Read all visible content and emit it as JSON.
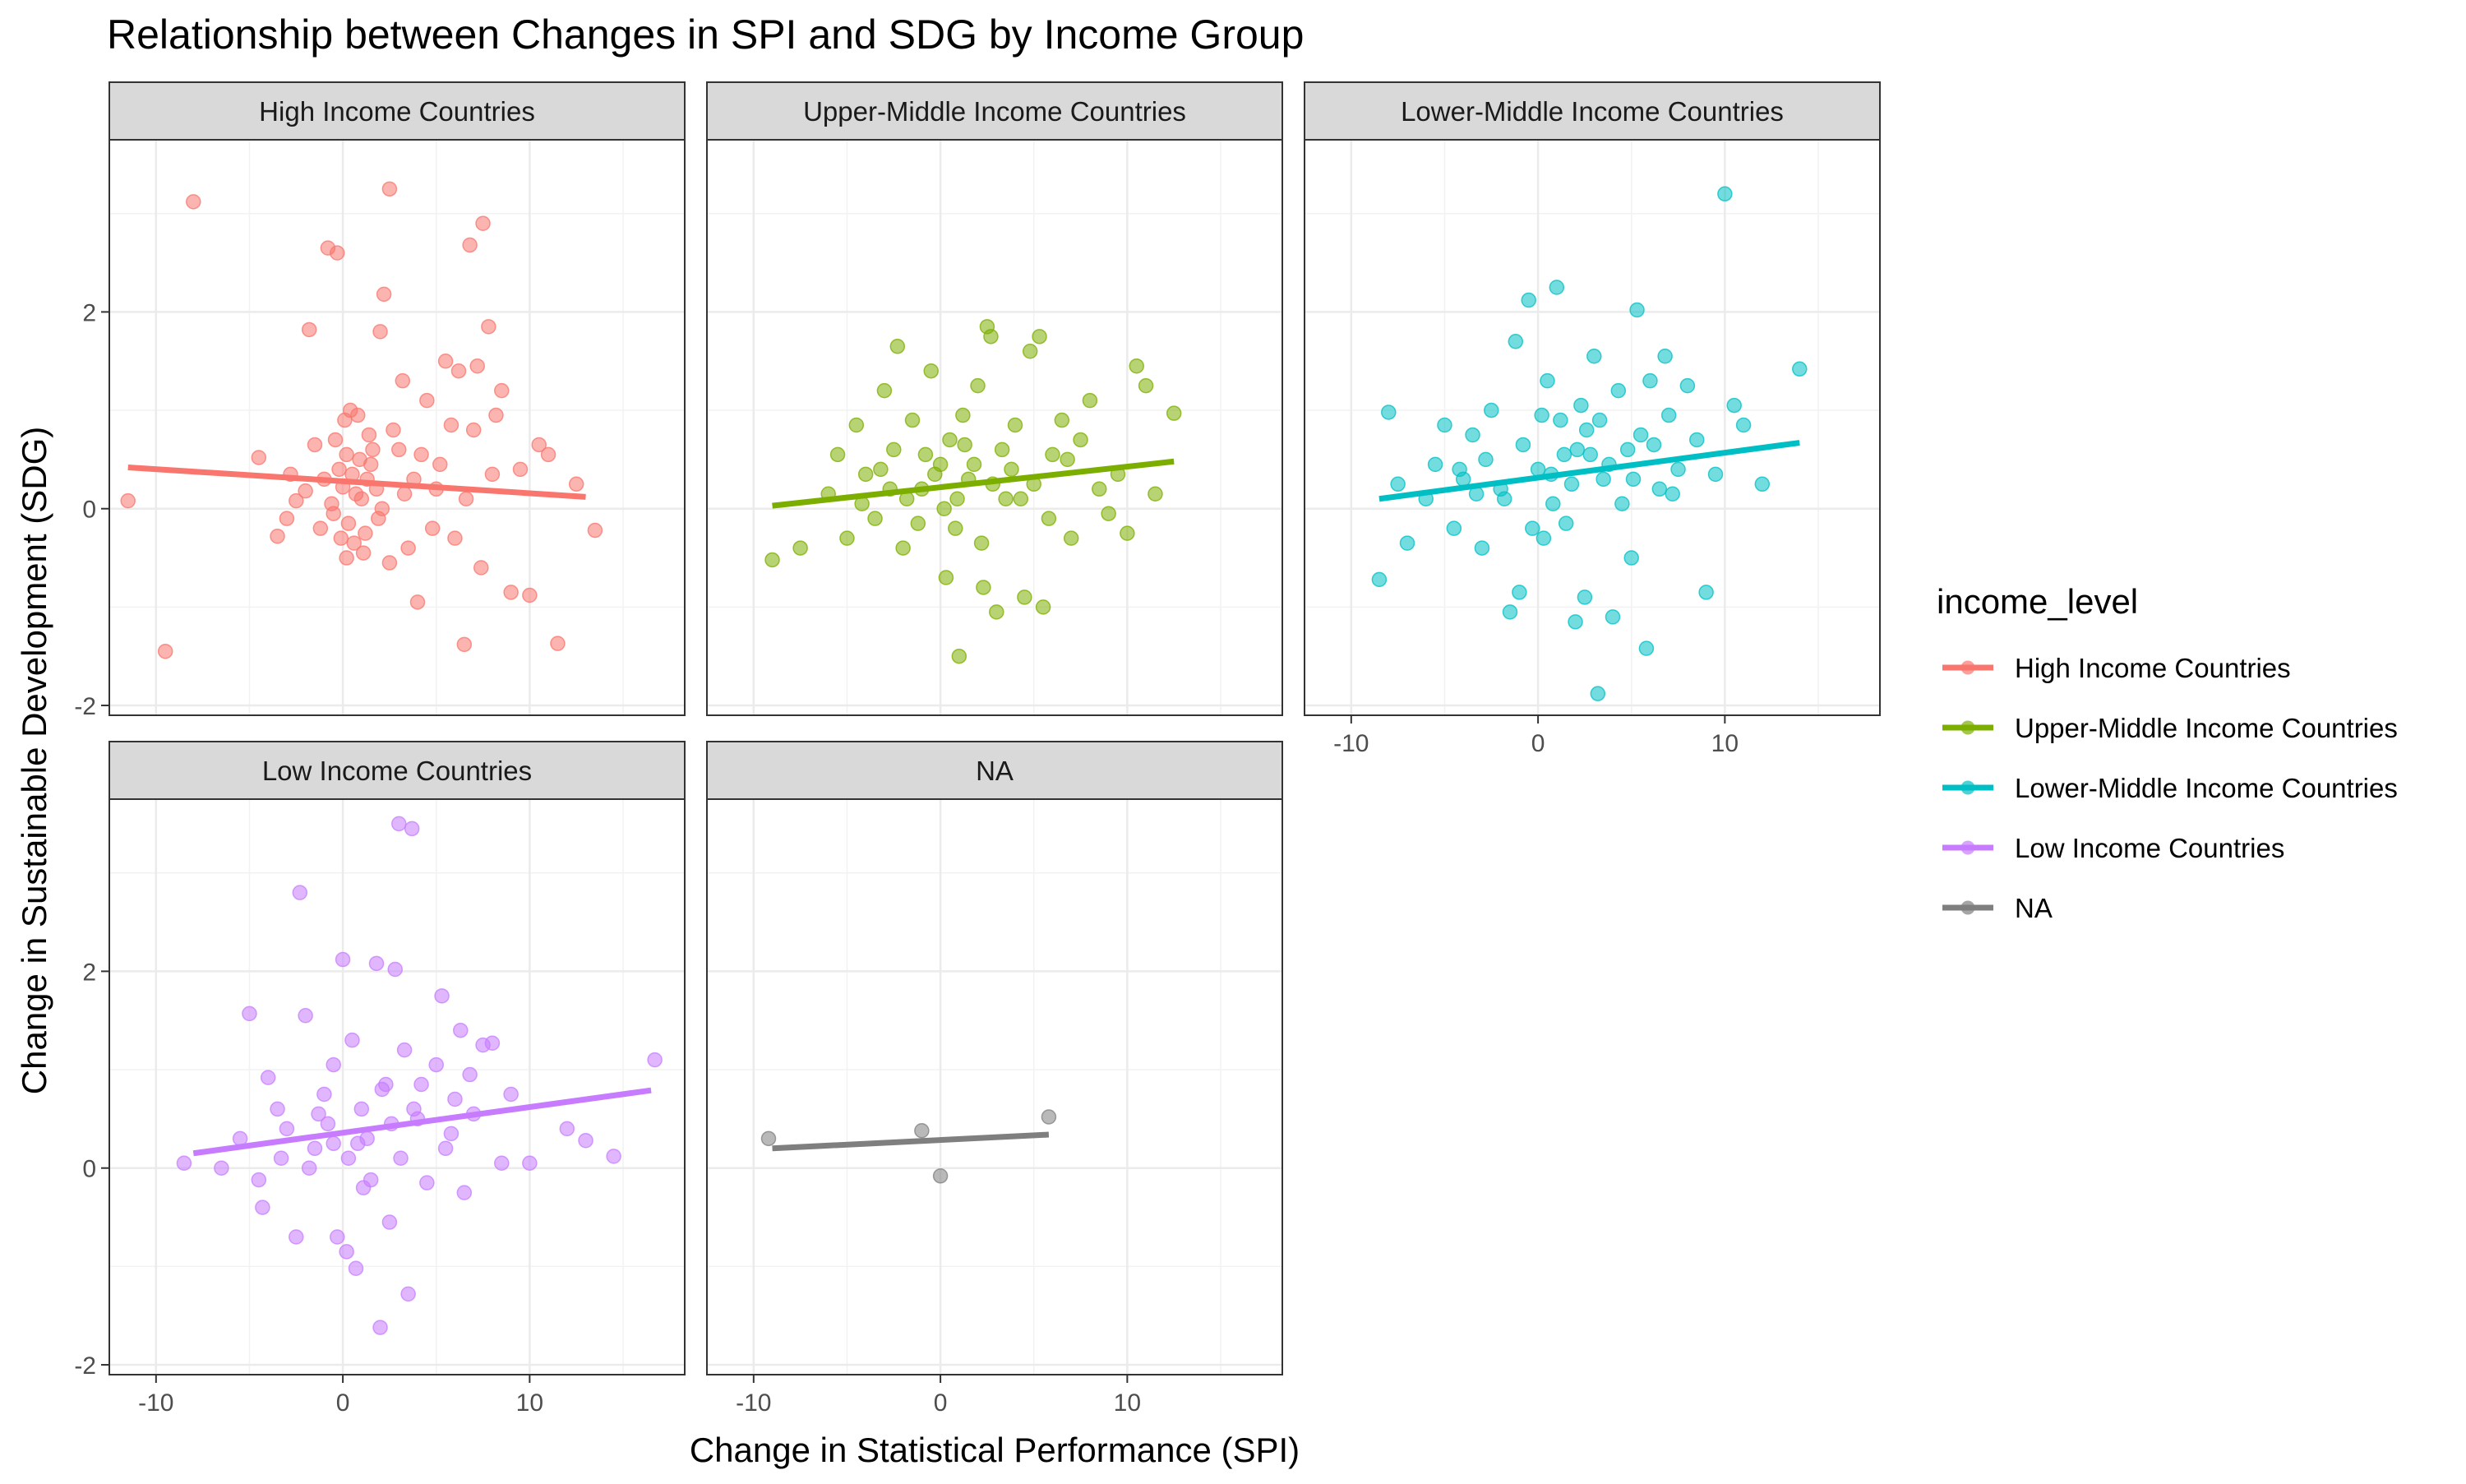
{
  "chart_data": {
    "type": "scatter",
    "title": "Relationship between Changes in SPI and SDG by Income Group",
    "xlabel": "Change in Statistical Performance (SPI)",
    "ylabel": "Change in Sustainable Development (SDG)",
    "xlim": [
      -12.5,
      18.3
    ],
    "ylim": [
      -2.1,
      3.75
    ],
    "x_ticks": [
      -10,
      0,
      10
    ],
    "y_ticks": [
      -2,
      0,
      2
    ],
    "grid": true,
    "legend": {
      "title": "income_level",
      "position": "right",
      "entries": [
        {
          "label": "High Income Countries",
          "color": "#F8766D"
        },
        {
          "label": "Upper-Middle Income Countries",
          "color": "#7CAE00"
        },
        {
          "label": "Lower-Middle Income Countries",
          "color": "#00BFC4"
        },
        {
          "label": "Low Income Countries",
          "color": "#C77CFF"
        },
        {
          "label": "NA",
          "color": "#7F7F7F"
        }
      ]
    },
    "panels": [
      {
        "name": "High Income Countries",
        "color": "#F8766D",
        "trend": {
          "x": [
            -11.5,
            13.0
          ],
          "y": [
            0.42,
            0.12
          ]
        },
        "points": [
          [
            -11.5,
            0.08
          ],
          [
            -9.5,
            -1.45
          ],
          [
            -8.0,
            3.12
          ],
          [
            -4.5,
            0.52
          ],
          [
            -3.5,
            -0.28
          ],
          [
            -2.5,
            0.08
          ],
          [
            -2.0,
            0.18
          ],
          [
            -1.8,
            1.82
          ],
          [
            -1.5,
            0.65
          ],
          [
            -1.0,
            0.3
          ],
          [
            -0.8,
            2.65
          ],
          [
            -0.6,
            0.05
          ],
          [
            -0.5,
            -0.05
          ],
          [
            -0.3,
            2.6
          ],
          [
            -0.2,
            0.4
          ],
          [
            0.0,
            0.22
          ],
          [
            0.2,
            0.55
          ],
          [
            0.3,
            -0.15
          ],
          [
            0.5,
            0.35
          ],
          [
            0.6,
            -0.35
          ],
          [
            0.8,
            0.95
          ],
          [
            1.0,
            0.1
          ],
          [
            1.2,
            -0.25
          ],
          [
            1.4,
            0.75
          ],
          [
            1.5,
            0.45
          ],
          [
            1.8,
            0.2
          ],
          [
            2.0,
            1.8
          ],
          [
            2.2,
            2.18
          ],
          [
            2.5,
            3.25
          ],
          [
            2.5,
            -0.55
          ],
          [
            3.0,
            0.6
          ],
          [
            3.2,
            1.3
          ],
          [
            3.5,
            -0.4
          ],
          [
            3.8,
            0.3
          ],
          [
            4.0,
            -0.95
          ],
          [
            4.5,
            1.1
          ],
          [
            5.0,
            0.2
          ],
          [
            5.5,
            1.5
          ],
          [
            6.0,
            -0.3
          ],
          [
            6.2,
            1.4
          ],
          [
            6.5,
            -1.38
          ],
          [
            6.8,
            2.68
          ],
          [
            7.0,
            0.8
          ],
          [
            7.2,
            1.45
          ],
          [
            7.5,
            2.9
          ],
          [
            7.8,
            1.85
          ],
          [
            8.0,
            0.35
          ],
          [
            8.5,
            1.2
          ],
          [
            9.0,
            -0.85
          ],
          [
            9.5,
            0.4
          ],
          [
            10.0,
            -0.88
          ],
          [
            10.5,
            0.65
          ],
          [
            11.0,
            0.55
          ],
          [
            11.5,
            -1.37
          ],
          [
            12.5,
            0.25
          ],
          [
            13.5,
            -0.22
          ],
          [
            -3.0,
            -0.1
          ],
          [
            -2.8,
            0.35
          ],
          [
            -1.2,
            -0.2
          ],
          [
            -0.4,
            0.7
          ],
          [
            0.1,
            0.9
          ],
          [
            0.4,
            1.0
          ],
          [
            0.9,
            0.5
          ],
          [
            1.1,
            -0.45
          ],
          [
            1.6,
            0.6
          ],
          [
            2.1,
            0.0
          ],
          [
            2.7,
            0.8
          ],
          [
            3.3,
            0.15
          ],
          [
            4.2,
            0.55
          ],
          [
            4.8,
            -0.2
          ],
          [
            5.2,
            0.45
          ],
          [
            5.8,
            0.85
          ],
          [
            6.6,
            0.1
          ],
          [
            7.4,
            -0.6
          ],
          [
            8.2,
            0.95
          ],
          [
            -0.1,
            -0.3
          ],
          [
            0.7,
            0.15
          ],
          [
            1.3,
            0.3
          ],
          [
            0.2,
            -0.5
          ],
          [
            1.9,
            -0.1
          ]
        ]
      },
      {
        "name": "Upper-Middle Income Countries",
        "color": "#7CAE00",
        "trend": {
          "x": [
            -9.0,
            12.5
          ],
          "y": [
            0.03,
            0.48
          ]
        },
        "points": [
          [
            -9.0,
            -0.52
          ],
          [
            -7.5,
            -0.4
          ],
          [
            -6.0,
            0.15
          ],
          [
            -5.5,
            0.55
          ],
          [
            -5.0,
            -0.3
          ],
          [
            -4.5,
            0.85
          ],
          [
            -4.0,
            0.35
          ],
          [
            -3.5,
            -0.1
          ],
          [
            -3.0,
            1.2
          ],
          [
            -2.5,
            0.6
          ],
          [
            -2.3,
            1.65
          ],
          [
            -2.0,
            -0.4
          ],
          [
            -1.5,
            0.9
          ],
          [
            -1.0,
            0.2
          ],
          [
            -0.5,
            1.4
          ],
          [
            0.0,
            0.45
          ],
          [
            0.3,
            -0.7
          ],
          [
            0.5,
            0.7
          ],
          [
            0.8,
            -0.2
          ],
          [
            1.0,
            -1.5
          ],
          [
            1.2,
            0.95
          ],
          [
            1.5,
            0.3
          ],
          [
            2.0,
            1.25
          ],
          [
            2.3,
            -0.8
          ],
          [
            2.5,
            1.85
          ],
          [
            2.7,
            1.75
          ],
          [
            3.0,
            -1.05
          ],
          [
            3.3,
            0.6
          ],
          [
            3.5,
            0.1
          ],
          [
            4.0,
            0.85
          ],
          [
            4.5,
            -0.9
          ],
          [
            4.8,
            1.6
          ],
          [
            5.0,
            0.25
          ],
          [
            5.3,
            1.75
          ],
          [
            5.5,
            -1.0
          ],
          [
            6.0,
            0.55
          ],
          [
            6.5,
            0.9
          ],
          [
            7.0,
            -0.3
          ],
          [
            7.5,
            0.7
          ],
          [
            8.0,
            1.1
          ],
          [
            8.5,
            0.2
          ],
          [
            9.0,
            -0.05
          ],
          [
            9.5,
            0.35
          ],
          [
            10.0,
            -0.25
          ],
          [
            10.5,
            1.45
          ],
          [
            11.0,
            1.25
          ],
          [
            11.5,
            0.15
          ],
          [
            12.5,
            0.97
          ],
          [
            -1.8,
            0.1
          ],
          [
            -0.8,
            0.55
          ],
          [
            0.2,
            0.0
          ],
          [
            1.8,
            0.45
          ],
          [
            2.8,
            0.25
          ],
          [
            3.8,
            0.4
          ],
          [
            -3.2,
            0.4
          ],
          [
            -1.2,
            -0.15
          ],
          [
            1.3,
            0.65
          ],
          [
            -0.3,
            0.35
          ],
          [
            0.9,
            0.1
          ],
          [
            2.2,
            -0.35
          ],
          [
            4.3,
            0.1
          ],
          [
            6.8,
            0.5
          ],
          [
            -2.7,
            0.2
          ],
          [
            -4.2,
            0.05
          ],
          [
            5.8,
            -0.1
          ]
        ]
      },
      {
        "name": "Lower-Middle Income Countries",
        "color": "#00BFC4",
        "trend": {
          "x": [
            -8.5,
            14.0
          ],
          "y": [
            0.1,
            0.67
          ]
        },
        "points": [
          [
            -8.5,
            -0.72
          ],
          [
            -8.0,
            0.98
          ],
          [
            -7.5,
            0.25
          ],
          [
            -7.0,
            -0.35
          ],
          [
            -6.0,
            0.1
          ],
          [
            -5.5,
            0.45
          ],
          [
            -5.0,
            0.85
          ],
          [
            -4.5,
            -0.2
          ],
          [
            -4.0,
            0.3
          ],
          [
            -3.5,
            0.75
          ],
          [
            -3.0,
            -0.4
          ],
          [
            -2.5,
            1.0
          ],
          [
            -2.0,
            0.2
          ],
          [
            -1.5,
            -1.05
          ],
          [
            -1.2,
            1.7
          ],
          [
            -1.0,
            -0.85
          ],
          [
            -0.5,
            2.12
          ],
          [
            0.0,
            0.4
          ],
          [
            0.3,
            -0.3
          ],
          [
            0.5,
            1.3
          ],
          [
            0.8,
            0.05
          ],
          [
            1.0,
            2.25
          ],
          [
            1.2,
            0.9
          ],
          [
            1.5,
            -0.15
          ],
          [
            2.0,
            -1.15
          ],
          [
            2.3,
            1.05
          ],
          [
            2.5,
            -0.9
          ],
          [
            2.8,
            0.55
          ],
          [
            3.0,
            1.55
          ],
          [
            3.2,
            -1.88
          ],
          [
            3.5,
            0.3
          ],
          [
            4.0,
            -1.1
          ],
          [
            4.3,
            1.2
          ],
          [
            4.8,
            0.6
          ],
          [
            5.0,
            -0.5
          ],
          [
            5.3,
            2.02
          ],
          [
            5.5,
            0.75
          ],
          [
            5.8,
            -1.42
          ],
          [
            6.0,
            1.3
          ],
          [
            6.5,
            0.2
          ],
          [
            6.8,
            1.55
          ],
          [
            7.0,
            0.95
          ],
          [
            7.5,
            0.4
          ],
          [
            8.0,
            1.25
          ],
          [
            8.5,
            0.7
          ],
          [
            9.0,
            -0.85
          ],
          [
            9.5,
            0.35
          ],
          [
            10.0,
            3.2
          ],
          [
            10.5,
            1.05
          ],
          [
            11.0,
            0.85
          ],
          [
            12.0,
            0.25
          ],
          [
            14.0,
            1.42
          ],
          [
            -2.8,
            0.5
          ],
          [
            -1.8,
            0.1
          ],
          [
            -0.8,
            0.65
          ],
          [
            0.2,
            0.95
          ],
          [
            1.8,
            0.25
          ],
          [
            2.6,
            0.8
          ],
          [
            3.8,
            0.45
          ],
          [
            4.5,
            0.05
          ],
          [
            6.2,
            0.65
          ],
          [
            -3.3,
            0.15
          ],
          [
            -0.3,
            -0.2
          ],
          [
            1.4,
            0.55
          ],
          [
            0.7,
            0.35
          ],
          [
            2.1,
            0.6
          ],
          [
            3.3,
            0.9
          ],
          [
            -4.2,
            0.4
          ],
          [
            5.1,
            0.3
          ],
          [
            7.2,
            0.15
          ]
        ]
      },
      {
        "name": "Low Income Countries",
        "color": "#C77CFF",
        "trend": {
          "x": [
            -8.0,
            16.5
          ],
          "y": [
            0.15,
            0.79
          ]
        },
        "points": [
          [
            -8.5,
            0.05
          ],
          [
            -6.5,
            0.0
          ],
          [
            -5.5,
            0.3
          ],
          [
            -5.0,
            1.57
          ],
          [
            -4.5,
            -0.12
          ],
          [
            -4.0,
            0.92
          ],
          [
            -3.5,
            0.6
          ],
          [
            -3.0,
            0.4
          ],
          [
            -2.5,
            -0.7
          ],
          [
            -2.3,
            2.8
          ],
          [
            -2.0,
            1.55
          ],
          [
            -1.5,
            0.2
          ],
          [
            -1.0,
            0.75
          ],
          [
            -0.5,
            1.05
          ],
          [
            -0.3,
            -0.7
          ],
          [
            0.0,
            2.12
          ],
          [
            0.2,
            -0.85
          ],
          [
            0.5,
            1.3
          ],
          [
            0.7,
            -1.02
          ],
          [
            1.0,
            0.6
          ],
          [
            1.5,
            -0.12
          ],
          [
            1.8,
            2.08
          ],
          [
            2.0,
            -1.62
          ],
          [
            2.3,
            0.85
          ],
          [
            2.5,
            -0.55
          ],
          [
            2.8,
            2.02
          ],
          [
            3.0,
            3.5
          ],
          [
            3.3,
            1.2
          ],
          [
            3.5,
            -1.28
          ],
          [
            3.7,
            3.45
          ],
          [
            4.0,
            0.5
          ],
          [
            4.5,
            -0.15
          ],
          [
            5.0,
            1.05
          ],
          [
            5.3,
            1.75
          ],
          [
            5.5,
            0.2
          ],
          [
            6.0,
            0.7
          ],
          [
            6.3,
            1.4
          ],
          [
            6.5,
            -0.25
          ],
          [
            7.0,
            0.55
          ],
          [
            7.5,
            1.25
          ],
          [
            8.0,
            1.27
          ],
          [
            8.5,
            0.05
          ],
          [
            9.0,
            0.75
          ],
          [
            10.0,
            0.05
          ],
          [
            12.0,
            0.4
          ],
          [
            13.0,
            0.28
          ],
          [
            14.5,
            0.12
          ],
          [
            16.7,
            1.1
          ],
          [
            -1.8,
            0.0
          ],
          [
            -0.8,
            0.45
          ],
          [
            0.3,
            0.1
          ],
          [
            1.3,
            0.3
          ],
          [
            2.1,
            0.8
          ],
          [
            3.1,
            0.1
          ],
          [
            4.2,
            0.85
          ],
          [
            -3.3,
            0.1
          ],
          [
            -1.3,
            0.55
          ],
          [
            0.8,
            0.25
          ],
          [
            2.6,
            0.45
          ],
          [
            5.8,
            0.35
          ],
          [
            -4.3,
            -0.4
          ],
          [
            1.1,
            -0.2
          ],
          [
            3.8,
            0.6
          ],
          [
            -0.5,
            0.25
          ],
          [
            6.8,
            0.95
          ]
        ]
      },
      {
        "name": "NA",
        "color": "#7F7F7F",
        "trend": {
          "x": [
            -9.0,
            5.8
          ],
          "y": [
            0.2,
            0.34
          ]
        },
        "points": [
          [
            -9.2,
            0.3
          ],
          [
            -1.0,
            0.38
          ],
          [
            0.0,
            -0.08
          ],
          [
            5.8,
            0.52
          ]
        ]
      }
    ]
  }
}
